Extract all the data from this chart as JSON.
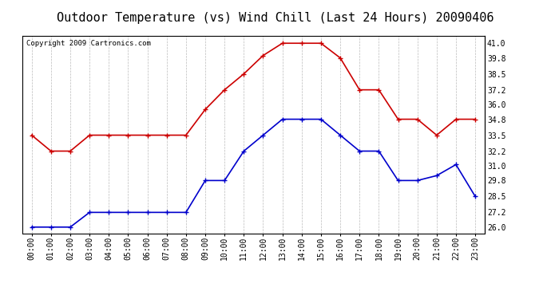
{
  "title": "Outdoor Temperature (vs) Wind Chill (Last 24 Hours) 20090406",
  "copyright": "Copyright 2009 Cartronics.com",
  "hours": [
    "00:00",
    "01:00",
    "02:00",
    "03:00",
    "04:00",
    "05:00",
    "06:00",
    "07:00",
    "08:00",
    "09:00",
    "10:00",
    "11:00",
    "12:00",
    "13:00",
    "14:00",
    "15:00",
    "16:00",
    "17:00",
    "18:00",
    "19:00",
    "20:00",
    "21:00",
    "22:00",
    "23:00"
  ],
  "temp": [
    33.5,
    32.2,
    32.2,
    33.5,
    33.5,
    33.5,
    33.5,
    33.5,
    33.5,
    35.6,
    37.2,
    38.5,
    40.0,
    41.0,
    41.0,
    41.0,
    39.8,
    37.2,
    37.2,
    34.8,
    34.8,
    33.5,
    34.8,
    34.8
  ],
  "windchill": [
    26.0,
    26.0,
    26.0,
    27.2,
    27.2,
    27.2,
    27.2,
    27.2,
    27.2,
    29.8,
    29.8,
    32.2,
    33.5,
    34.8,
    34.8,
    34.8,
    33.5,
    32.2,
    32.2,
    29.8,
    29.8,
    30.2,
    31.1,
    28.5
  ],
  "temp_color": "#cc0000",
  "windchill_color": "#0000cc",
  "bg_color": "#ffffff",
  "grid_color": "#bbbbbb",
  "ylim": [
    25.5,
    41.6
  ],
  "yticks": [
    26.0,
    27.2,
    28.5,
    29.8,
    31.0,
    32.2,
    33.5,
    34.8,
    36.0,
    37.2,
    38.5,
    39.8,
    41.0
  ],
  "title_fontsize": 11,
  "copyright_fontsize": 6.5,
  "axis_label_fontsize": 7,
  "markersize": 3,
  "linewidth": 1.2
}
